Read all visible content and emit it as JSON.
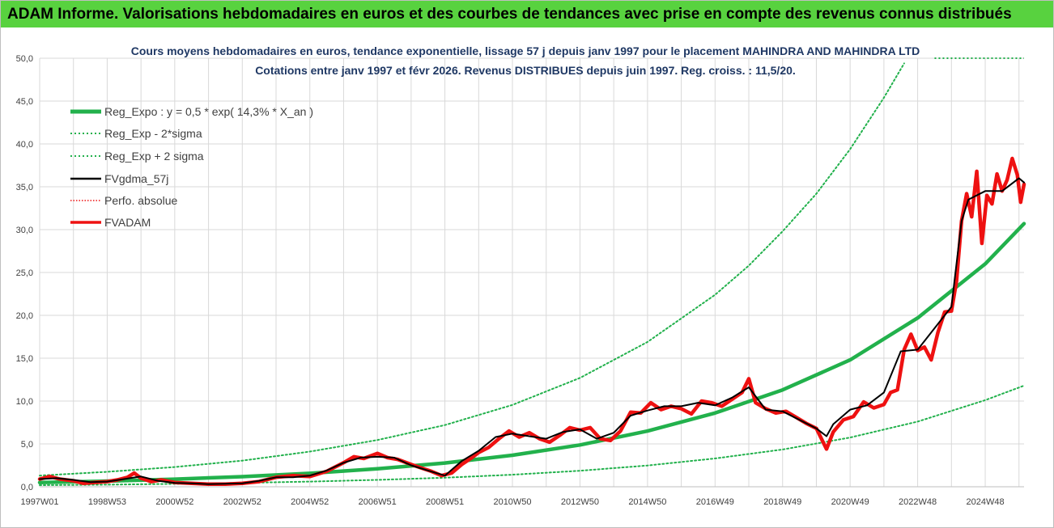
{
  "banner": {
    "title": "ADAM Informe. Valorisations hebdomadaires en euros et des courbes de tendances avec prise en compte des revenus connus distribués"
  },
  "colors": {
    "banner_bg": "#58d23f",
    "reg_expo": "#22b14c",
    "fvgdma": "#000000",
    "fvadam": "#ee1111",
    "title_text": "#1f3864",
    "grid": "#d9d9d9"
  },
  "chart_data": {
    "type": "line",
    "title": "Cours moyens hebdomadaires en euros, tendance exponentielle, lissage 57 j depuis janv 1997 pour le placement MAHINDRA AND MAHINDRA LTD",
    "subtitle": "Cotations entre janv 1997 et févr 2026. Revenus DISTRIBUES depuis juin 1997. Reg. croiss. : 11,5/20.",
    "ylim": [
      0,
      50
    ],
    "y_ticks": [
      "0,0",
      "5,0",
      "10,0",
      "15,0",
      "20,0",
      "25,0",
      "30,0",
      "35,0",
      "40,0",
      "45,0",
      "50,0"
    ],
    "xlim": [
      1997.0,
      2026.15
    ],
    "x_ticks": [
      {
        "label": "1997W01",
        "x": 1997.0
      },
      {
        "label": "1998W53",
        "x": 1999.0
      },
      {
        "label": "2000W52",
        "x": 2001.0
      },
      {
        "label": "2002W52",
        "x": 2003.0
      },
      {
        "label": "2004W52",
        "x": 2005.0
      },
      {
        "label": "2006W51",
        "x": 2007.0
      },
      {
        "label": "2008W51",
        "x": 2009.0
      },
      {
        "label": "2010W50",
        "x": 2011.0
      },
      {
        "label": "2012W50",
        "x": 2013.0
      },
      {
        "label": "2014W50",
        "x": 2015.0
      },
      {
        "label": "2016W49",
        "x": 2017.0
      },
      {
        "label": "2018W49",
        "x": 2019.0
      },
      {
        "label": "2020W49",
        "x": 2021.0
      },
      {
        "label": "2022W48",
        "x": 2023.0
      },
      {
        "label": "2024W48",
        "x": 2025.0
      }
    ],
    "grid": true,
    "legend_position": "top-left",
    "series": [
      {
        "name": "Reg_Expo : y = 0,5 * exp( 14,3% * X_an )",
        "style": "solid-thick",
        "color": "#22b14c",
        "x": [
          1997.0,
          1999.0,
          2001.0,
          2003.0,
          2005.0,
          2007.0,
          2009.0,
          2011.0,
          2013.0,
          2015.0,
          2017.0,
          2019.0,
          2021.0,
          2023.0,
          2025.0,
          2026.15
        ],
        "y": [
          0.5,
          0.66,
          0.89,
          1.18,
          1.57,
          2.09,
          2.77,
          3.68,
          4.88,
          6.5,
          8.6,
          11.3,
          14.8,
          19.7,
          26.0,
          30.7
        ]
      },
      {
        "name": "Reg_Exp - 2*sigma",
        "style": "dotted",
        "color": "#22b14c",
        "x": [
          1997.0,
          1999.0,
          2001.0,
          2003.0,
          2005.0,
          2007.0,
          2009.0,
          2011.0,
          2013.0,
          2015.0,
          2017.0,
          2019.0,
          2021.0,
          2023.0,
          2025.0,
          2026.15
        ],
        "y": [
          0.19,
          0.25,
          0.34,
          0.45,
          0.6,
          0.8,
          1.06,
          1.41,
          1.87,
          2.48,
          3.3,
          4.35,
          5.75,
          7.6,
          10.1,
          11.8
        ]
      },
      {
        "name": "Reg_Exp + 2 sigma",
        "style": "dotted",
        "color": "#22b14c",
        "x": [
          1997.0,
          1999.0,
          2001.0,
          2003.0,
          2005.0,
          2007.0,
          2009.0,
          2011.0,
          2013.0,
          2015.0,
          2017.0,
          2018.0,
          2019.0,
          2020.0,
          2021.0,
          2022.0,
          2022.6
        ],
        "y": [
          1.3,
          1.75,
          2.3,
          3.05,
          4.1,
          5.45,
          7.2,
          9.55,
          12.7,
          16.9,
          22.4,
          25.8,
          29.8,
          34.2,
          39.4,
          45.4,
          49.4
        ],
        "ceiling_note": [
          {
            "x": 2022.6,
            "y": 50.0
          },
          {
            "x": 2026.15,
            "y": 50.0
          }
        ]
      },
      {
        "name": "FVgdma_57j",
        "style": "solid",
        "color": "#000000",
        "x": [
          1997.0,
          1997.5,
          1998.0,
          1998.5,
          1999.0,
          1999.5,
          2000.0,
          2000.5,
          2001.0,
          2001.5,
          2002.0,
          2002.5,
          2003.0,
          2003.5,
          2004.0,
          2004.5,
          2005.0,
          2005.5,
          2006.0,
          2006.5,
          2007.0,
          2007.5,
          2008.0,
          2008.5,
          2009.0,
          2009.5,
          2010.0,
          2010.5,
          2011.0,
          2011.5,
          2012.0,
          2012.5,
          2013.0,
          2013.5,
          2014.0,
          2014.5,
          2015.0,
          2015.5,
          2016.0,
          2016.5,
          2017.0,
          2017.5,
          2018.0,
          2018.5,
          2019.0,
          2019.5,
          2020.0,
          2020.3,
          2020.5,
          2021.0,
          2021.5,
          2022.0,
          2022.5,
          2023.0,
          2023.5,
          2024.0,
          2024.3,
          2024.5,
          2025.0,
          2025.5,
          2026.0,
          2026.15
        ],
        "y": [
          0.9,
          1.0,
          0.8,
          0.55,
          0.6,
          0.9,
          1.2,
          0.7,
          0.45,
          0.4,
          0.3,
          0.35,
          0.4,
          0.7,
          1.1,
          1.1,
          1.3,
          1.9,
          2.8,
          3.4,
          3.5,
          3.4,
          2.5,
          1.9,
          1.3,
          3.0,
          4.2,
          5.8,
          6.2,
          5.9,
          5.6,
          6.4,
          6.7,
          5.6,
          6.3,
          8.3,
          8.9,
          9.4,
          9.4,
          9.8,
          9.5,
          10.4,
          11.6,
          9.0,
          8.8,
          7.8,
          6.8,
          5.9,
          7.3,
          9.0,
          9.5,
          11.0,
          15.8,
          16.0,
          18.5,
          21.0,
          31.0,
          33.5,
          34.5,
          34.5,
          36.0,
          35.5
        ]
      },
      {
        "name": "Perfo. absolue",
        "style": "dotted-thin",
        "color": "#ee1111",
        "x": [],
        "y": []
      },
      {
        "name": "FVADAM",
        "style": "solid-thick",
        "color": "#ee1111",
        "x": [
          1997.0,
          1997.3,
          1997.6,
          1998.0,
          1998.3,
          1998.6,
          1999.0,
          1999.3,
          1999.6,
          1999.8,
          2000.0,
          2000.3,
          2000.6,
          2001.0,
          2001.5,
          2002.0,
          2002.5,
          2003.0,
          2003.5,
          2004.0,
          2004.5,
          2005.0,
          2005.5,
          2006.0,
          2006.3,
          2006.6,
          2007.0,
          2007.3,
          2007.6,
          2008.0,
          2008.3,
          2008.6,
          2008.9,
          2009.2,
          2009.5,
          2009.8,
          2010.0,
          2010.3,
          2010.6,
          2010.9,
          2011.2,
          2011.5,
          2011.8,
          2012.1,
          2012.4,
          2012.7,
          2013.0,
          2013.3,
          2013.6,
          2013.9,
          2014.2,
          2014.5,
          2014.8,
          2015.1,
          2015.4,
          2015.7,
          2016.0,
          2016.3,
          2016.6,
          2016.9,
          2017.2,
          2017.5,
          2017.8,
          2018.0,
          2018.2,
          2018.5,
          2018.8,
          2019.1,
          2019.4,
          2019.7,
          2020.0,
          2020.2,
          2020.3,
          2020.5,
          2020.8,
          2021.1,
          2021.4,
          2021.7,
          2022.0,
          2022.2,
          2022.4,
          2022.6,
          2022.8,
          2023.0,
          2023.2,
          2023.4,
          2023.6,
          2023.8,
          2024.0,
          2024.15,
          2024.3,
          2024.45,
          2024.6,
          2024.75,
          2024.9,
          2025.05,
          2025.2,
          2025.35,
          2025.5,
          2025.65,
          2025.8,
          2025.95,
          2026.05,
          2026.15
        ],
        "y": [
          0.9,
          1.2,
          0.9,
          0.7,
          0.4,
          0.5,
          0.6,
          0.8,
          1.1,
          1.6,
          1.0,
          0.6,
          0.8,
          0.5,
          0.4,
          0.3,
          0.3,
          0.4,
          0.6,
          1.1,
          1.3,
          1.2,
          1.8,
          2.8,
          3.5,
          3.3,
          3.9,
          3.4,
          3.2,
          2.6,
          2.2,
          1.8,
          1.3,
          1.6,
          2.6,
          3.4,
          4.0,
          4.6,
          5.6,
          6.5,
          5.8,
          6.3,
          5.6,
          5.2,
          6.0,
          6.9,
          6.6,
          6.9,
          5.6,
          5.4,
          6.5,
          8.7,
          8.6,
          9.8,
          9.0,
          9.4,
          9.1,
          8.5,
          10.0,
          9.8,
          9.4,
          10.2,
          11.0,
          12.6,
          9.8,
          9.1,
          8.6,
          8.8,
          8.1,
          7.4,
          6.8,
          5.2,
          4.4,
          6.4,
          7.8,
          8.2,
          9.9,
          9.2,
          9.6,
          11.0,
          11.3,
          16.0,
          17.8,
          15.9,
          16.3,
          14.8,
          18.0,
          20.4,
          20.5,
          24.0,
          31.0,
          34.2,
          31.5,
          36.8,
          28.4,
          34.0,
          33.0,
          36.5,
          34.5,
          35.8,
          38.3,
          36.4,
          33.2,
          35.3
        ]
      }
    ]
  }
}
